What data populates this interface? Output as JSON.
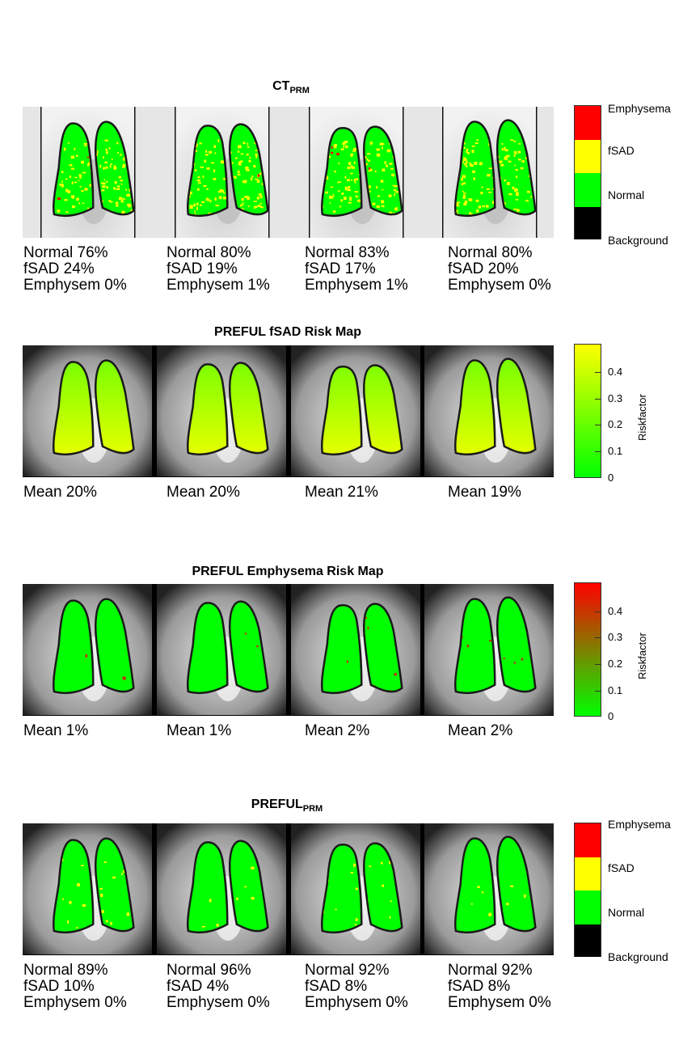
{
  "sections": {
    "ct_prm": {
      "title_main": "CT",
      "title_sub": "PRM",
      "panels": [
        {
          "line1": "Normal 76%",
          "line2": "fSAD 24%",
          "line3": "Emphysem 0%"
        },
        {
          "line1": "Normal 80%",
          "line2": "fSAD 19%",
          "line3": "Emphysem 1%"
        },
        {
          "line1": "Normal 83%",
          "line2": "fSAD 17%",
          "line3": "Emphysem 1%"
        },
        {
          "line1": "Normal 80%",
          "line2": "fSAD 20%",
          "line3": "Emphysem 0%"
        }
      ],
      "legend": [
        "Emphysema",
        "fSAD",
        "Normal",
        "Background"
      ]
    },
    "fsad_risk": {
      "title": "PREFUL fSAD Risk Map",
      "panels": [
        {
          "line1": "Mean 20%"
        },
        {
          "line1": "Mean 20%"
        },
        {
          "line1": "Mean 21%"
        },
        {
          "line1": "Mean 19%"
        }
      ],
      "colorbar": {
        "ticks": [
          "0.4",
          "0.3",
          "0.2",
          "0.1",
          "0"
        ],
        "label": "Riskfactor"
      }
    },
    "emph_risk": {
      "title": "PREFUL Emphysema Risk Map",
      "panels": [
        {
          "line1": "Mean 1%"
        },
        {
          "line1": "Mean 1%"
        },
        {
          "line1": "Mean 2%"
        },
        {
          "line1": "Mean 2%"
        }
      ],
      "colorbar": {
        "ticks": [
          "0.4",
          "0.3",
          "0.2",
          "0.1",
          "0"
        ],
        "label": "Riskfactor"
      }
    },
    "preful_prm": {
      "title_main": "PREFUL",
      "title_sub": "PRM",
      "panels": [
        {
          "line1": "Normal 89%",
          "line2": "fSAD 10%",
          "line3": "Emphysem 0%"
        },
        {
          "line1": "Normal 96%",
          "line2": "fSAD 4%",
          "line3": "Emphysem 0%"
        },
        {
          "line1": "Normal 92%",
          "line2": "fSAD 8%",
          "line3": "Emphysem 0%"
        },
        {
          "line1": "Normal 92%",
          "line2": "fSAD 8%",
          "line3": "Emphysem 0%"
        }
      ],
      "legend": [
        "Emphysema",
        "fSAD",
        "Normal",
        "Background"
      ]
    }
  },
  "colors": {
    "normal": "#00ff00",
    "fsad": "#ffff00",
    "emphysema": "#ff0000",
    "background": "#000000",
    "ct_bg": "#e6e6e6"
  }
}
